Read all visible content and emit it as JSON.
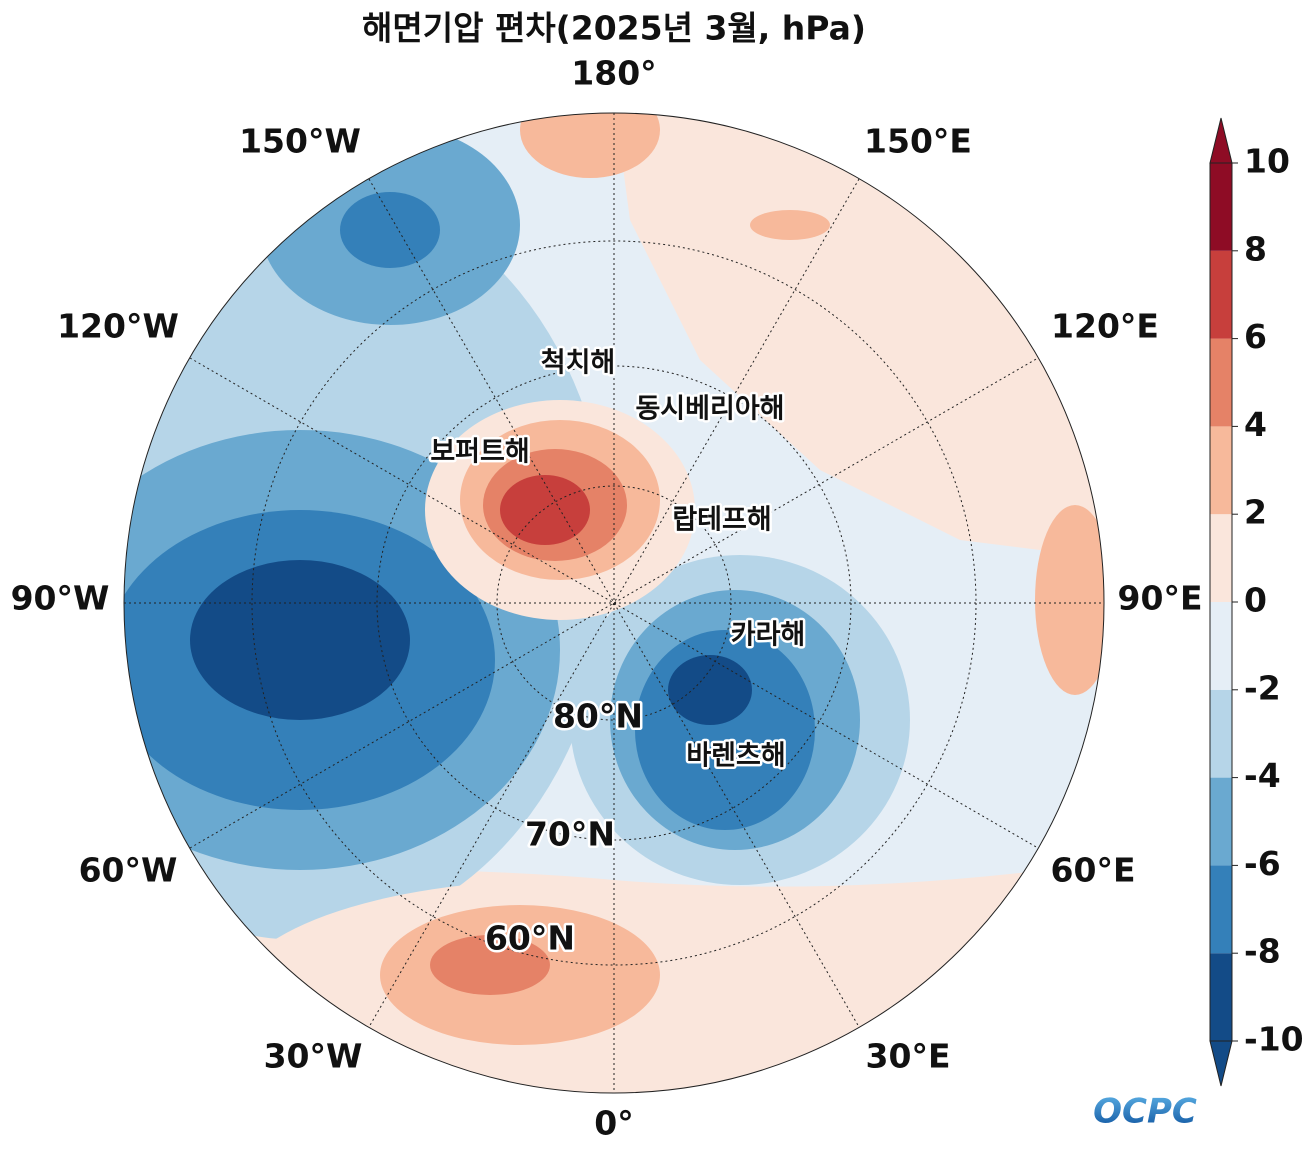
{
  "title": "해면기압 편차(2025년 3월, hPa)",
  "longitude_labels": [
    "180°",
    "150°W",
    "150°E",
    "120°W",
    "120°E",
    "90°W",
    "90°E",
    "60°W",
    "60°E",
    "30°W",
    "30°E",
    "0°"
  ],
  "latitude_labels": [
    "80°N",
    "70°N",
    "60°N"
  ],
  "sea_names": [
    "척치해",
    "동시베리아해",
    "보퍼트해",
    "랍테프해",
    "카라해",
    "바렌츠해"
  ],
  "colorbar": {
    "lim": [
      -10,
      10
    ],
    "ticks": [
      -10,
      -8,
      -6,
      -4,
      -2,
      0,
      2,
      4,
      6,
      8,
      10
    ],
    "colors": [
      "#134b87",
      "#3480b9",
      "#6aa9d0",
      "#b6d5e8",
      "#e5eef6",
      "#fae6dc",
      "#f7b99b",
      "#e58267",
      "#c73f3c",
      "#8e0c25"
    ]
  },
  "logo": "OCPC"
}
